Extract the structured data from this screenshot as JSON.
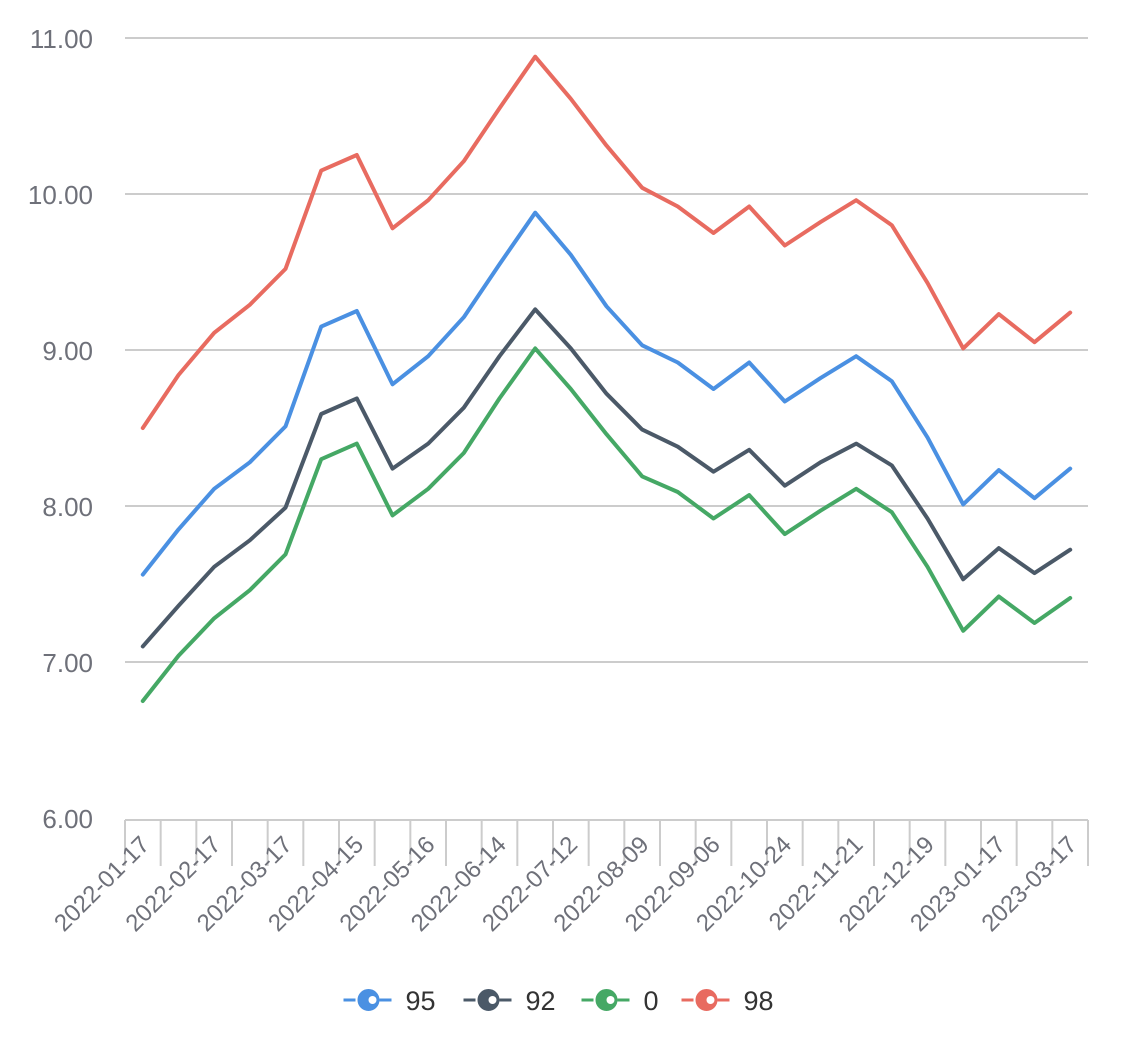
{
  "chart_data": {
    "type": "line",
    "title": "",
    "xlabel": "",
    "ylabel": "",
    "ylim": [
      6,
      11
    ],
    "yticks": [
      "6.00",
      "7.00",
      "8.00",
      "9.00",
      "10.00",
      "11.00"
    ],
    "grid": true,
    "legend_position": "bottom",
    "x": [
      "2022-01-17",
      "",
      "2022-02-17",
      "",
      "2022-03-17",
      "",
      "2022-04-15",
      "",
      "2022-05-16",
      "",
      "2022-06-14",
      "",
      "2022-07-12",
      "",
      "2022-08-09",
      "",
      "2022-09-06",
      "",
      "2022-10-24",
      "",
      "2022-11-21",
      "",
      "2022-12-19",
      "",
      "2023-01-17",
      "",
      "2023-03-17"
    ],
    "series": [
      {
        "name": "95",
        "color": "#4a90e2",
        "values": [
          7.56,
          7.85,
          8.11,
          8.28,
          8.51,
          9.15,
          9.25,
          8.78,
          8.96,
          9.21,
          9.55,
          9.88,
          9.61,
          9.28,
          9.03,
          8.92,
          8.75,
          8.92,
          8.67,
          8.82,
          8.96,
          8.8,
          8.44,
          8.01,
          8.23,
          8.05,
          8.24
        ]
      },
      {
        "name": "92",
        "color": "#4b5968",
        "values": [
          7.1,
          7.36,
          7.61,
          7.78,
          7.99,
          8.59,
          8.69,
          8.24,
          8.4,
          8.63,
          8.96,
          9.26,
          9.01,
          8.72,
          8.49,
          8.38,
          8.22,
          8.36,
          8.13,
          8.28,
          8.4,
          8.26,
          7.92,
          7.53,
          7.73,
          7.57,
          7.72
        ]
      },
      {
        "name": "0",
        "color": "#45a865",
        "values": [
          6.75,
          7.04,
          7.28,
          7.46,
          7.69,
          8.3,
          8.4,
          7.94,
          8.11,
          8.34,
          8.69,
          9.01,
          8.75,
          8.46,
          8.19,
          8.09,
          7.92,
          8.07,
          7.82,
          7.97,
          8.11,
          7.96,
          7.61,
          7.2,
          7.42,
          7.25,
          7.41
        ]
      },
      {
        "name": "98",
        "color": "#e86b60",
        "values": [
          8.5,
          8.84,
          9.11,
          9.29,
          9.52,
          10.15,
          10.25,
          9.78,
          9.96,
          10.21,
          10.55,
          10.88,
          10.61,
          10.31,
          10.04,
          9.92,
          9.75,
          9.92,
          9.67,
          9.82,
          9.96,
          9.8,
          9.43,
          9.01,
          9.23,
          9.05,
          9.24
        ]
      }
    ]
  }
}
